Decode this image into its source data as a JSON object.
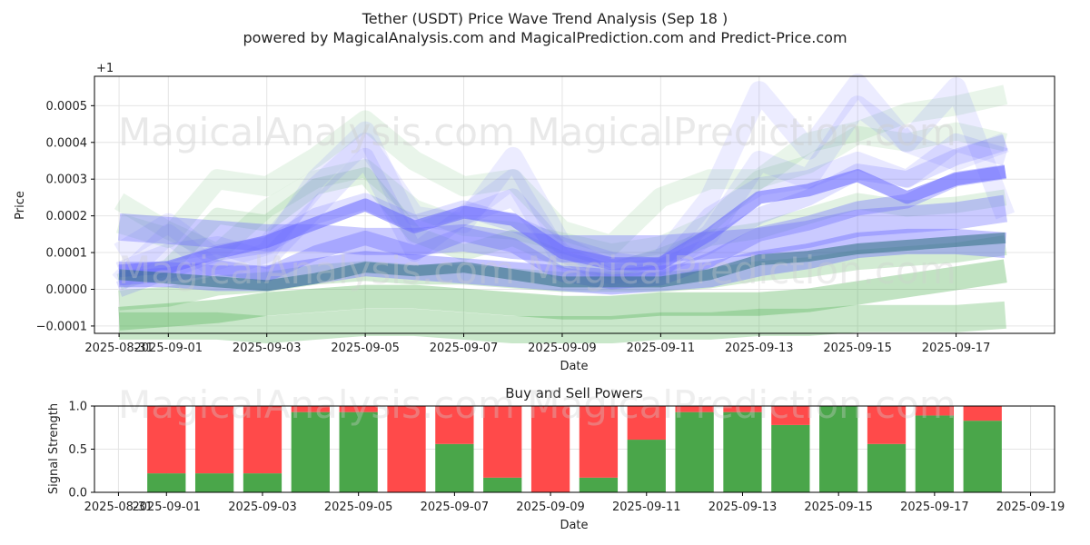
{
  "header": {
    "title": "Tether (USDT) Price Wave Trend Analysis (Sep 18 )",
    "subtitle": "powered by MagicalAnalysis.com and MagicalPrediction.com and Predict-Price.com"
  },
  "watermarks": {
    "top": "MagicalAnalysis.com    MagicalPrediction.com",
    "bottom": "MagicalAnalysis.com    MagicalPrediction.com"
  },
  "colors": {
    "green": "#4caf50",
    "blue": "#6666ff",
    "dark": "#2f6f7f",
    "buy": "#4aa64a",
    "sell": "#ff4a4a"
  },
  "chart_data": [
    {
      "type": "line",
      "xlabel": "Date",
      "ylabel": "Price",
      "offset_label": "+1",
      "ylim": [
        -0.00012,
        0.00058
      ],
      "yticks": [
        -0.0001,
        0.0,
        0.0001,
        0.0002,
        0.0003,
        0.0004,
        0.0005
      ],
      "ytick_labels": [
        "−0.0001",
        "0.0000",
        "0.0001",
        "0.0002",
        "0.0003",
        "0.0004",
        "0.0005"
      ],
      "xlim": [
        "2025-08-30T12:00",
        "2025-09-19T00:00"
      ],
      "xticks": [
        "2025-08-31",
        "2025-09-01",
        "2025-09-03",
        "2025-09-05",
        "2025-09-07",
        "2025-09-09",
        "2025-09-11",
        "2025-09-13",
        "2025-09-15",
        "2025-09-17"
      ],
      "xtick_labels": [
        "2025-08-31",
        "2025-09-01",
        "2025-09-03",
        "2025-09-05",
        "2025-09-07",
        "2025-09-09",
        "2025-09-11",
        "2025-09-13",
        "2025-09-15",
        "2025-09-17"
      ],
      "grid": true,
      "x": [
        "2025-08-31",
        "2025-09-01",
        "2025-09-02",
        "2025-09-03",
        "2025-09-04",
        "2025-09-05",
        "2025-09-06",
        "2025-09-07",
        "2025-09-08",
        "2025-09-09",
        "2025-09-10",
        "2025-09-11",
        "2025-09-12",
        "2025-09-13",
        "2025-09-14",
        "2025-09-15",
        "2025-09-16",
        "2025-09-17",
        "2025-09-18"
      ],
      "series": [
        {
          "color": "green",
          "opacity": 0.12,
          "width": 22,
          "values": [
            0.00018,
            0.00014,
            0.0003,
            0.00028,
            0.00036,
            0.00046,
            0.00035,
            0.00028,
            0.0003,
            0.00016,
            0.00012,
            0.00025,
            0.0003,
            0.0003,
            0.0004,
            0.00043,
            0.00048,
            0.0005,
            0.00053
          ]
        },
        {
          "color": "green",
          "opacity": 0.12,
          "width": 20,
          "values": [
            0.00024,
            0.00016,
            0.0001,
            0.00022,
            0.0003,
            0.00033,
            0.00022,
            0.00017,
            0.00016,
            0.00013,
            0.0001,
            0.00012,
            0.00018,
            0.0003,
            0.00034,
            0.00042,
            0.0004,
            0.00043,
            0.0004
          ]
        },
        {
          "color": "green",
          "opacity": 0.16,
          "width": 18,
          "values": [
            2e-05,
            6e-05,
            0.0002,
            0.00018,
            0.00028,
            0.00031,
            0.00015,
            0.0001,
            0.00014,
            8e-05,
            5e-05,
            9e-05,
            0.00014,
            0.00016,
            0.0002,
            0.00024,
            0.00022,
            0.00023,
            0.00025
          ]
        },
        {
          "color": "green",
          "opacity": 0.25,
          "width": 22,
          "values": [
            -3e-05,
            -2e-05,
            1e-05,
            2e-05,
            4e-05,
            5e-05,
            4e-05,
            4e-05,
            3e-05,
            2e-05,
            2e-05,
            2e-05,
            3e-05,
            5e-05,
            6e-05,
            8e-05,
            9e-05,
            0.0001,
            0.00012
          ]
        },
        {
          "color": "green",
          "opacity": 0.35,
          "width": 26,
          "values": [
            -8e-05,
            -7e-05,
            -6e-05,
            -4e-05,
            -3e-05,
            -2e-05,
            -2e-05,
            -3e-05,
            -4e-05,
            -5e-05,
            -5e-05,
            -4e-05,
            -4e-05,
            -4e-05,
            -3e-05,
            -1e-05,
            1e-05,
            3e-05,
            5e-05
          ]
        },
        {
          "color": "green",
          "opacity": 0.3,
          "width": 30,
          "values": [
            -0.0001,
            -0.0001,
            -0.0001,
            -0.00011,
            -0.0001,
            -9e-05,
            -9e-05,
            -0.0001,
            -0.00011,
            -0.00011,
            -0.00011,
            -0.0001,
            -0.0001,
            -9e-05,
            -9e-05,
            -8e-05,
            -8e-05,
            -8e-05,
            -7e-05
          ]
        },
        {
          "color": "blue",
          "opacity": 0.12,
          "width": 22,
          "values": [
            0.0001,
            0.00018,
            8e-05,
            0.00012,
            0.00028,
            0.0004,
            0.0002,
            0.00018,
            0.00036,
            0.00012,
            5e-05,
            8e-05,
            0.00025,
            0.00054,
            0.00038,
            0.00056,
            0.0004,
            0.00035,
            0.0004
          ]
        },
        {
          "color": "blue",
          "opacity": 0.12,
          "width": 22,
          "values": [
            2e-05,
            0.00015,
            5e-05,
            0.0001,
            0.0003,
            0.00043,
            0.00015,
            0.0002,
            0.0003,
            8e-05,
            4e-05,
            6e-05,
            0.00015,
            0.00035,
            0.0003,
            0.0005,
            0.0004,
            0.00055,
            0.0002
          ]
        },
        {
          "color": "blue",
          "opacity": 0.15,
          "width": 20,
          "values": [
            5e-05,
            0.0001,
            0.00012,
            8e-05,
            0.00022,
            0.00036,
            0.0001,
            0.0002,
            0.00025,
            0.0001,
            3e-05,
            5e-05,
            0.0002,
            0.00028,
            0.0003,
            0.00035,
            0.0003,
            0.0004,
            0.00036
          ]
        },
        {
          "color": "blue",
          "opacity": 0.2,
          "width": 18,
          "values": [
            0.0,
            5e-05,
            0.0001,
            0.00012,
            0.0002,
            0.00024,
            0.00018,
            0.00022,
            0.00018,
            0.00012,
            8e-05,
            6e-05,
            0.00012,
            0.0002,
            0.00025,
            0.00032,
            0.0003,
            0.00036,
            0.0004
          ]
        },
        {
          "color": "blue",
          "opacity": 0.35,
          "width": 16,
          "values": [
            3e-05,
            4e-05,
            6e-05,
            4e-05,
            0.0001,
            0.00014,
            0.0001,
            0.00015,
            0.00012,
            4e-05,
            2e-05,
            3e-05,
            8e-05,
            0.00015,
            0.00018,
            0.00022,
            0.00024,
            0.0003,
            0.00032
          ]
        },
        {
          "color": "blue",
          "opacity": 0.55,
          "width": 14,
          "values": [
            5e-05,
            6e-05,
            0.0001,
            0.00013,
            0.00018,
            0.00023,
            0.00017,
            0.00021,
            0.00019,
            0.0001,
            7e-05,
            7e-05,
            0.00015,
            0.00025,
            0.00027,
            0.00031,
            0.00025,
            0.0003,
            0.00032
          ]
        },
        {
          "color": "blue",
          "opacity": 0.35,
          "width": 30,
          "values": [
            0.00017,
            0.00016,
            0.00015,
            0.00014,
            0.00014,
            0.00013,
            0.00013,
            0.00014,
            0.00012,
            0.00011,
            0.00011,
            0.00011,
            0.00012,
            0.00013,
            0.00015,
            0.00018,
            0.00019,
            0.0002,
            0.00022
          ]
        },
        {
          "color": "blue",
          "opacity": 0.4,
          "width": 28,
          "values": [
            4e-05,
            4e-05,
            3e-05,
            3e-05,
            5e-05,
            7e-05,
            6e-05,
            5e-05,
            4e-05,
            3e-05,
            2e-05,
            3e-05,
            4e-05,
            7e-05,
            9e-05,
            0.00012,
            0.00013,
            0.00013,
            0.00012
          ]
        },
        {
          "color": "dark",
          "opacity": 0.55,
          "width": 12,
          "values": [
            4e-05,
            3e-05,
            2e-05,
            1e-05,
            3e-05,
            6e-05,
            5e-05,
            6e-05,
            4e-05,
            2e-05,
            2e-05,
            2e-05,
            4e-05,
            8e-05,
            9e-05,
            0.00011,
            0.00012,
            0.00013,
            0.00014
          ]
        }
      ]
    },
    {
      "type": "bar",
      "title": "Buy and Sell Powers",
      "xlabel": "Date",
      "ylabel": "Signal Strength",
      "ylim": [
        0,
        1
      ],
      "yticks": [
        0.0,
        0.5,
        1.0
      ],
      "ytick_labels": [
        "0.0",
        "0.5",
        "1.0"
      ],
      "xlim": [
        "2025-08-30T12:00",
        "2025-09-19T12:00"
      ],
      "xticks": [
        "2025-08-31",
        "2025-09-01",
        "2025-09-03",
        "2025-09-05",
        "2025-09-07",
        "2025-09-09",
        "2025-09-11",
        "2025-09-13",
        "2025-09-15",
        "2025-09-17",
        "2025-09-19"
      ],
      "xtick_labels": [
        "2025-08-31",
        "2025-09-01",
        "2025-09-03",
        "2025-09-05",
        "2025-09-07",
        "2025-09-09",
        "2025-09-11",
        "2025-09-13",
        "2025-09-15",
        "2025-09-17",
        "2025-09-19"
      ],
      "grid": true,
      "categories": [
        "2025-09-01",
        "2025-09-02",
        "2025-09-03",
        "2025-09-04",
        "2025-09-05",
        "2025-09-06",
        "2025-09-07",
        "2025-09-08",
        "2025-09-09",
        "2025-09-10",
        "2025-09-11",
        "2025-09-12",
        "2025-09-13",
        "2025-09-14",
        "2025-09-15",
        "2025-09-16",
        "2025-09-17",
        "2025-09-18"
      ],
      "series": [
        {
          "color": "buy",
          "values": [
            0.22,
            0.22,
            0.22,
            0.93,
            0.93,
            0.0,
            0.56,
            0.17,
            0.0,
            0.17,
            0.61,
            0.93,
            0.93,
            0.78,
            1.0,
            0.56,
            0.89,
            0.83
          ]
        },
        {
          "color": "sell",
          "values": [
            0.78,
            0.78,
            0.78,
            0.07,
            0.07,
            1.0,
            0.44,
            0.83,
            1.0,
            0.83,
            0.39,
            0.07,
            0.07,
            0.22,
            0.0,
            0.44,
            0.11,
            0.17
          ]
        }
      ]
    }
  ]
}
